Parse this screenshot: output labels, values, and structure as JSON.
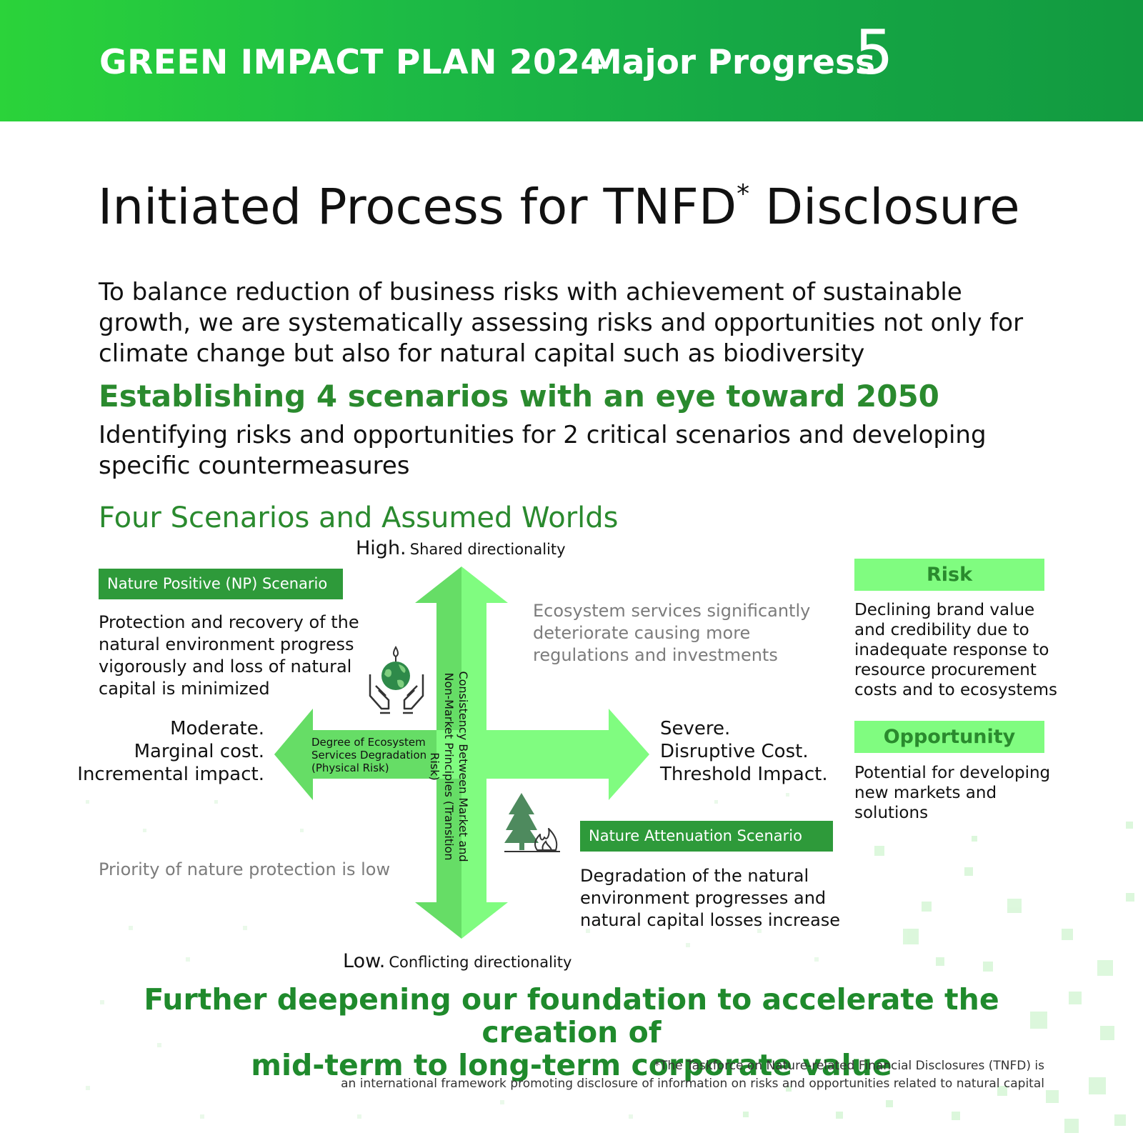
{
  "header": {
    "plan_title": "GREEN IMPACT PLAN 2024",
    "progress_label": "Major Progress",
    "progress_number": "5",
    "gradient_colors": [
      "#2bd33a",
      "#129a40"
    ]
  },
  "title": {
    "text": "Initiated Process for TNFD",
    "asterisk": "*",
    "text_after": " Disclosure"
  },
  "intro": "To balance reduction of business risks with achievement of sustainable growth, we are systematically assessing risks and opportunities not only for climate change but also for natural capital such as biodiversity",
  "scenarios_heading": "Establishing 4 scenarios with an eye toward 2050",
  "scenarios_sub": "Identifying risks and opportunities for 2 critical scenarios and developing specific countermeasures",
  "diagram": {
    "title": "Four Scenarios and Assumed Worlds",
    "axis_top": {
      "level": "High.",
      "text": "Shared directionality"
    },
    "axis_bottom": {
      "level": "Low.",
      "text": "Conflicting directionality"
    },
    "vertical_axis_label": "Consistency Between Market and Non-Market Principles (Transition Risk)",
    "horizontal_axis_label": "Degree of Ecosystem Services Degradation (Physical Risk)",
    "left_end": [
      "Moderate.",
      "Marginal cost.",
      "Incremental impact."
    ],
    "right_end": [
      "Severe.",
      "Disruptive Cost.",
      "Threshold Impact."
    ],
    "np_scenario": {
      "badge": "Nature Positive (NP) Scenario",
      "description": "Protection and recovery of the natural environment progress vigorously and loss of natural capital is minimized",
      "icon": "hands-globe-icon"
    },
    "na_scenario": {
      "badge": "Nature Attenuation Scenario",
      "description": "Degradation of the natural environment progresses and natural capital losses increase",
      "icon": "tree-fire-icon"
    },
    "top_right_note": "Ecosystem services significantly deteriorate causing more regulations and investments",
    "bottom_left_note": "Priority of nature protection is low",
    "colors": {
      "arrow_light": "#80fc80",
      "arrow_dark": "#66dd66",
      "badge": "#2e9a3a",
      "accent_text": "#2a8a2e"
    }
  },
  "risk": {
    "label": "Risk",
    "text": "Declining brand value and credibility due to inadequate response to resource procurement costs and to ecosystems"
  },
  "opportunity": {
    "label": "Opportunity",
    "text": "Potential for developing new markets and solutions"
  },
  "conclusion": [
    "Further deepening our foundation to accelerate the creation of",
    "mid-term to long-term corporate value"
  ],
  "footnote": [
    "*The Taskforce on Nature-related Financial Disclosures (TNFD) is",
    "an international framework promoting disclosure of information on risks and opportunities related to natural capital"
  ]
}
